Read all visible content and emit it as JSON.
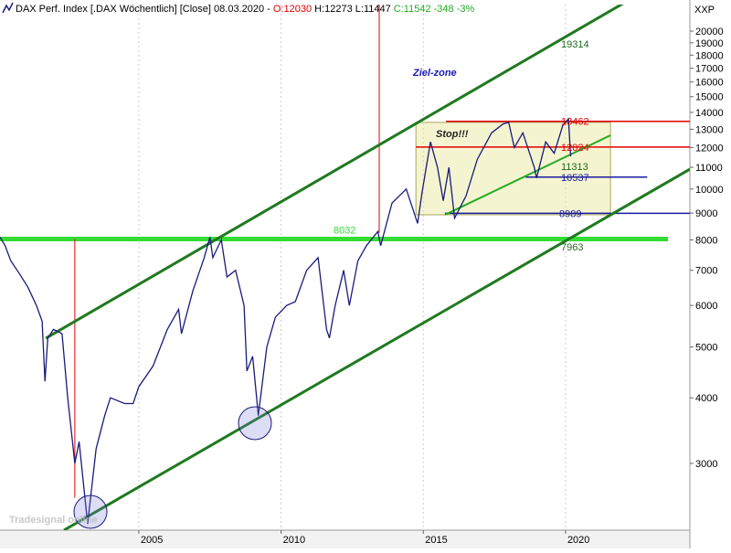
{
  "chart_data": {
    "type": "line",
    "title": "DAX Perf. Index [.DAX  Wöchentlich] [Close] 08.03.2020 -",
    "quote_open": "O:12030",
    "quote_hl": "H:12273 L:11447",
    "quote_close": "C:11542 -348 -3%",
    "y_axis_label": "XXP",
    "watermark": "Tradesignal online",
    "log_scale": true,
    "color": "#1a1a7a",
    "xlim": [
      2000.12,
      2024.37
    ],
    "xticks": [
      2005,
      2010,
      2015,
      2020
    ],
    "ylim": [
      2238,
      22470
    ],
    "yticks": [
      3000,
      4000,
      5000,
      6000,
      7000,
      8000,
      9000,
      10000,
      11000,
      12000,
      13000,
      14000,
      15000,
      16000,
      17000,
      18000,
      19000,
      20000
    ],
    "x": [
      2000.12,
      2000.3,
      2000.5,
      2000.8,
      2001.1,
      2001.4,
      2001.6,
      2001.7,
      2001.8,
      2002.0,
      2002.3,
      2002.5,
      2002.75,
      2002.9,
      2003.2,
      2003.5,
      2003.8,
      2004.0,
      2004.5,
      2004.8,
      2005.0,
      2005.5,
      2006.0,
      2006.4,
      2006.5,
      2006.9,
      2007.3,
      2007.5,
      2007.6,
      2007.9,
      2008.1,
      2008.4,
      2008.7,
      2008.8,
      2009.0,
      2009.2,
      2009.5,
      2009.8,
      2010.2,
      2010.5,
      2010.9,
      2011.3,
      2011.6,
      2011.7,
      2011.9,
      2012.2,
      2012.4,
      2012.7,
      2013.0,
      2013.4,
      2013.5,
      2013.9,
      2014.4,
      2014.8,
      2014.95,
      2015.25,
      2015.5,
      2015.7,
      2015.9,
      2016.1,
      2016.5,
      2016.9,
      2017.4,
      2017.8,
      2018.0,
      2018.2,
      2018.5,
      2018.9,
      2018.98,
      2019.3,
      2019.6,
      2019.9,
      2020.1,
      2020.18
    ],
    "values": [
      8100,
      7800,
      7300,
      6900,
      6500,
      6000,
      5600,
      4300,
      5200,
      5400,
      5300,
      4000,
      3000,
      3300,
      2300,
      3200,
      3700,
      4000,
      3900,
      3900,
      4200,
      4600,
      5400,
      5900,
      5300,
      6400,
      7400,
      8100,
      7400,
      8000,
      6800,
      7000,
      6000,
      4500,
      4800,
      3700,
      5000,
      5700,
      6000,
      6100,
      7000,
      7400,
      5400,
      5200,
      6000,
      7000,
      6000,
      7300,
      7800,
      8300,
      7800,
      9400,
      10000,
      8600,
      9800,
      12300,
      11000,
      9500,
      11000,
      8800,
      9700,
      11400,
      12800,
      13300,
      13400,
      12000,
      12800,
      11000,
      10500,
      12300,
      11700,
      13200,
      13600,
      11542
    ],
    "trendlines": [
      {
        "x": [
          2001.73,
          2022.12
        ],
        "y": [
          5196,
          22740
        ],
        "color": "#1f7a1f"
      },
      {
        "x": [
          2002.37,
          2024.37
        ],
        "y": [
          2238,
          10910
        ],
        "color": "#1f7a1f"
      },
      {
        "x": [
          2015.76,
          2021.58
        ],
        "y": [
          8932,
          12660
        ],
        "color": "#22aa22"
      }
    ],
    "levels": [
      {
        "value": 8032,
        "x": [
          2000.12,
          2023.6
        ],
        "color": "#33dd33"
      },
      {
        "value": 13462,
        "x": [
          2015.8,
          2024.37
        ],
        "color": "#e00000"
      },
      {
        "value": 12024,
        "x": [
          2014.74,
          2024.37
        ],
        "color": "#e00000"
      },
      {
        "value": 10537,
        "x": [
          2018.6,
          2022.87
        ],
        "color": "#1a1aa0"
      },
      {
        "value": 8989,
        "x": [
          2015.76,
          2024.37
        ],
        "color": "#1a1aa0"
      }
    ],
    "vlines": [
      {
        "x": 2002.75,
        "y": [
          8032,
          2580
        ],
        "color": "#e00000"
      },
      {
        "x": 2013.45,
        "y": [
          22470,
          8250
        ],
        "color": "#e00000"
      }
    ],
    "zone": {
      "x": [
        2014.74,
        2021.58
      ],
      "y": [
        8932,
        13400
      ],
      "color": "rgba(230,230,150,0.45)"
    },
    "annotations": [
      "Ziel-zone",
      "Stop!!!",
      "19314",
      "11313",
      "7963"
    ]
  }
}
